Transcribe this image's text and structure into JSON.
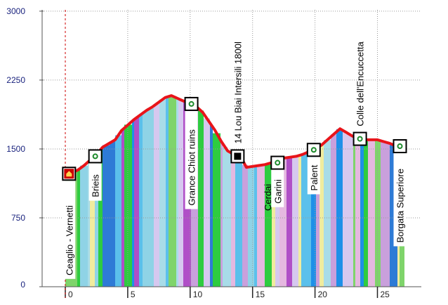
{
  "chart_data": {
    "type": "area",
    "title": "",
    "xlabel": "",
    "ylabel": "",
    "xlim": [
      0,
      27
    ],
    "ylim": [
      0,
      3000
    ],
    "y_ticks": [
      "0",
      "750",
      "1500",
      "2250",
      "3000"
    ],
    "x_ticks": [
      "0",
      "5",
      "10",
      "15",
      "20",
      "25"
    ],
    "grid": true,
    "series": [
      {
        "x": [
          0,
          0.5,
          1,
          1.5,
          2,
          2.5,
          3,
          3.5,
          4,
          4.5,
          5,
          5.5,
          6,
          6.5,
          7,
          7.5,
          8,
          8.5,
          9,
          9.5,
          10,
          10.5,
          11,
          11.5,
          12,
          12.5,
          13,
          13.5,
          14,
          14.5,
          15,
          15.5,
          16,
          16.5,
          17,
          17.5,
          18,
          18.5,
          19,
          19.5,
          20,
          20.5,
          21,
          21.5,
          22,
          22.5,
          23,
          23.5,
          24,
          24.5,
          25,
          25.5,
          26,
          26.5,
          27
        ],
        "y": [
          1230,
          1240,
          1270,
          1320,
          1380,
          1440,
          1520,
          1560,
          1600,
          1700,
          1760,
          1820,
          1870,
          1920,
          1960,
          2010,
          2060,
          2080,
          2050,
          2020,
          2000,
          1960,
          1900,
          1800,
          1700,
          1580,
          1480,
          1440,
          1430,
          1300,
          1310,
          1320,
          1330,
          1350,
          1380,
          1400,
          1410,
          1420,
          1440,
          1470,
          1500,
          1540,
          1600,
          1660,
          1720,
          1680,
          1640,
          1620,
          1600,
          1600,
          1600,
          1580,
          1560,
          1530,
          1500
        ]
      }
    ],
    "waypoints": [
      {
        "label": "Ceaglio - Vernetti",
        "x": 0.3,
        "y": 1230,
        "icon": "home-icon"
      },
      {
        "label": "Brieis",
        "x": 2.4,
        "y": 1420,
        "icon": "dot-icon"
      },
      {
        "label": "Grance Chiot ruins",
        "x": 10.1,
        "y": 1990,
        "icon": "dot-icon"
      },
      {
        "label": "14 Lou Biai Intersili 1800l",
        "x": 13.8,
        "y": 1420,
        "icon": "square-icon"
      },
      {
        "label": "Garini",
        "x": 17.0,
        "y": 1350,
        "icon": "dot-icon"
      },
      {
        "label": "Palent",
        "x": 19.9,
        "y": 1490,
        "icon": "dot-icon"
      },
      {
        "label": "Colle dell'Encuccetta",
        "x": 23.6,
        "y": 1610,
        "icon": "dot-icon"
      },
      {
        "label": "Borgata Superiore",
        "x": 26.8,
        "y": 1530,
        "icon": "dot-icon"
      }
    ],
    "clipped_label": "Cerdai",
    "colors": {
      "profile_line": "#e8141a",
      "axis_labels": "#1a237e",
      "start_marker": "#cc0000",
      "stripes": [
        "#a8dce8",
        "#1e90e8",
        "#5bc0eb",
        "#2e7bd6",
        "#c9a0dc",
        "#b04fc7",
        "#f0ec9e",
        "#2ecc40",
        "#7fd46b",
        "#d6c8ef",
        "#8fd3e6",
        "#e5b8e0"
      ]
    }
  }
}
